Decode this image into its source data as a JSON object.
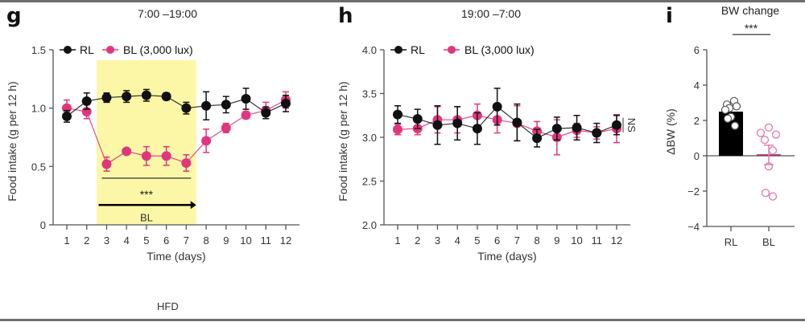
{
  "footer_label": "HFD",
  "colors": {
    "RL": "#111111",
    "BL": "#e0367e",
    "BL_dot": "#e27fb5",
    "highlight": "#fbf7a6",
    "axis": "#555555"
  },
  "chart_data": [
    {
      "panel": "g",
      "type": "line",
      "title": "7:00 –19:00",
      "xlabel": "Time (days)",
      "ylabel": "Food intake (g per 12 h)",
      "x": [
        1,
        2,
        3,
        4,
        5,
        6,
        7,
        8,
        9,
        10,
        11,
        12
      ],
      "x_ticks": [
        "1",
        "2",
        "3",
        "4",
        "5",
        "6",
        "7",
        "8",
        "9",
        "10",
        "11",
        "12"
      ],
      "ylim": [
        0,
        1.5
      ],
      "y_ticks": [
        "0",
        "0.5",
        "1.0",
        "1.5"
      ],
      "legend": [
        "RL",
        "BL (3,000 lux)"
      ],
      "legend_position": "top-left",
      "series": [
        {
          "name": "RL",
          "values": [
            0.93,
            1.06,
            1.09,
            1.1,
            1.11,
            1.1,
            1.0,
            1.02,
            1.03,
            1.08,
            0.96,
            1.04
          ],
          "err": [
            0.05,
            0.07,
            0.04,
            0.05,
            0.05,
            0.03,
            0.05,
            0.12,
            0.07,
            0.09,
            0.05,
            0.07
          ]
        },
        {
          "name": "BL (3,000 lux)",
          "values": [
            1.0,
            0.97,
            0.52,
            0.63,
            0.59,
            0.59,
            0.53,
            0.72,
            0.83,
            0.94,
            0.98,
            1.07
          ],
          "err": [
            0.07,
            0.06,
            0.06,
            0.02,
            0.08,
            0.08,
            0.07,
            0.1,
            0.04,
            0.03,
            0.07,
            0.07
          ]
        }
      ],
      "shaded_region": {
        "from_day": 2.5,
        "to_day": 7.5
      },
      "annotations": {
        "significance": "***",
        "arrow_label": "BL"
      }
    },
    {
      "panel": "h",
      "type": "line",
      "title": "19:00 –7:00",
      "xlabel": "Time (days)",
      "ylabel": "Food intake (g per 12 h)",
      "x": [
        1,
        2,
        3,
        4,
        5,
        6,
        7,
        8,
        9,
        10,
        11,
        12
      ],
      "x_ticks": [
        "1",
        "2",
        "3",
        "4",
        "5",
        "6",
        "7",
        "8",
        "9",
        "10",
        "11",
        "12"
      ],
      "ylim": [
        2.0,
        4.0
      ],
      "y_ticks": [
        "2.0",
        "2.5",
        "3.0",
        "3.5",
        "4.0"
      ],
      "legend": [
        "RL",
        "BL (3,000 lux)"
      ],
      "legend_position": "top-left",
      "series": [
        {
          "name": "RL",
          "values": [
            3.26,
            3.21,
            3.14,
            3.16,
            3.1,
            3.35,
            3.17,
            2.99,
            3.1,
            3.11,
            3.05,
            3.14
          ],
          "err": [
            0.1,
            0.11,
            0.22,
            0.19,
            0.18,
            0.21,
            0.21,
            0.1,
            0.13,
            0.14,
            0.11,
            0.11
          ]
        },
        {
          "name": "BL (3,000 lux)",
          "values": [
            3.09,
            3.1,
            3.2,
            3.2,
            3.25,
            3.2,
            3.16,
            3.07,
            3.0,
            3.08,
            3.05,
            3.1
          ],
          "err": [
            0.06,
            0.07,
            0.15,
            0.15,
            0.13,
            0.15,
            0.2,
            0.11,
            0.2,
            0.08,
            0.07,
            0.16
          ]
        }
      ],
      "annotations": {
        "significance": "NS"
      }
    },
    {
      "panel": "i",
      "type": "bar",
      "title": "BW change",
      "ylabel": "ΔBW (%)",
      "categories": [
        "RL",
        "BL"
      ],
      "values": [
        2.5,
        0.05
      ],
      "err": [
        0.2,
        0.55
      ],
      "points": [
        [
          3.1,
          2.9,
          2.8,
          2.7,
          2.6,
          2.2,
          2.1,
          1.7
        ],
        [
          1.6,
          1.3,
          1.2,
          0.9,
          0.3,
          -0.6,
          -2.1,
          -2.3
        ]
      ],
      "ylim": [
        -4,
        6
      ],
      "y_ticks": [
        "−4",
        "−2",
        "0",
        "2",
        "4",
        "6"
      ],
      "annotations": {
        "significance": "***"
      }
    }
  ]
}
